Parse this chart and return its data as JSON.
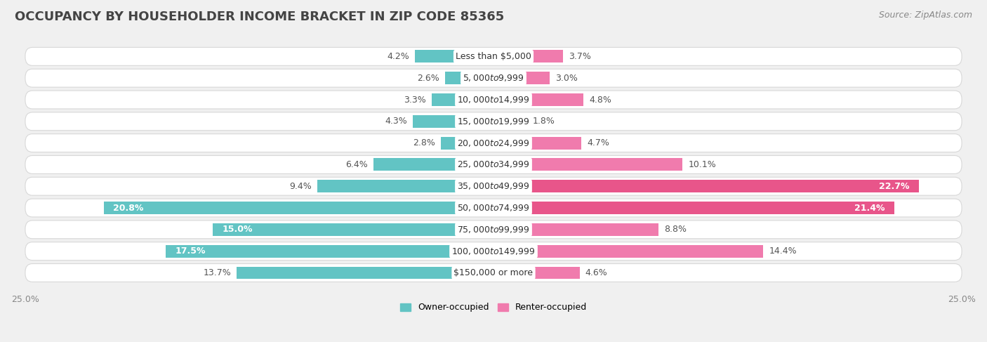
{
  "title": "OCCUPANCY BY HOUSEHOLDER INCOME BRACKET IN ZIP CODE 85365",
  "source": "Source: ZipAtlas.com",
  "categories": [
    "Less than $5,000",
    "$5,000 to $9,999",
    "$10,000 to $14,999",
    "$15,000 to $19,999",
    "$20,000 to $24,999",
    "$25,000 to $34,999",
    "$35,000 to $49,999",
    "$50,000 to $74,999",
    "$75,000 to $99,999",
    "$100,000 to $149,999",
    "$150,000 or more"
  ],
  "owner_values": [
    4.2,
    2.6,
    3.3,
    4.3,
    2.8,
    6.4,
    9.4,
    20.8,
    15.0,
    17.5,
    13.7
  ],
  "renter_values": [
    3.7,
    3.0,
    4.8,
    1.8,
    4.7,
    10.1,
    22.7,
    21.4,
    8.8,
    14.4,
    4.6
  ],
  "owner_color": "#62C4C4",
  "renter_color": "#F07BAD",
  "renter_color_dark": "#E8558A",
  "background_color": "#f0f0f0",
  "bar_background": "#ffffff",
  "bar_track_color": "#e8e8ee",
  "axis_limit": 25.0,
  "legend_owner": "Owner-occupied",
  "legend_renter": "Renter-occupied",
  "title_fontsize": 13,
  "source_fontsize": 9,
  "label_fontsize": 9,
  "category_fontsize": 9,
  "axis_label_fontsize": 9,
  "bar_height": 0.58,
  "owner_label_inside_threshold": 15.0,
  "renter_label_inside_threshold": 20.0,
  "renter_dark_threshold": 20.0
}
